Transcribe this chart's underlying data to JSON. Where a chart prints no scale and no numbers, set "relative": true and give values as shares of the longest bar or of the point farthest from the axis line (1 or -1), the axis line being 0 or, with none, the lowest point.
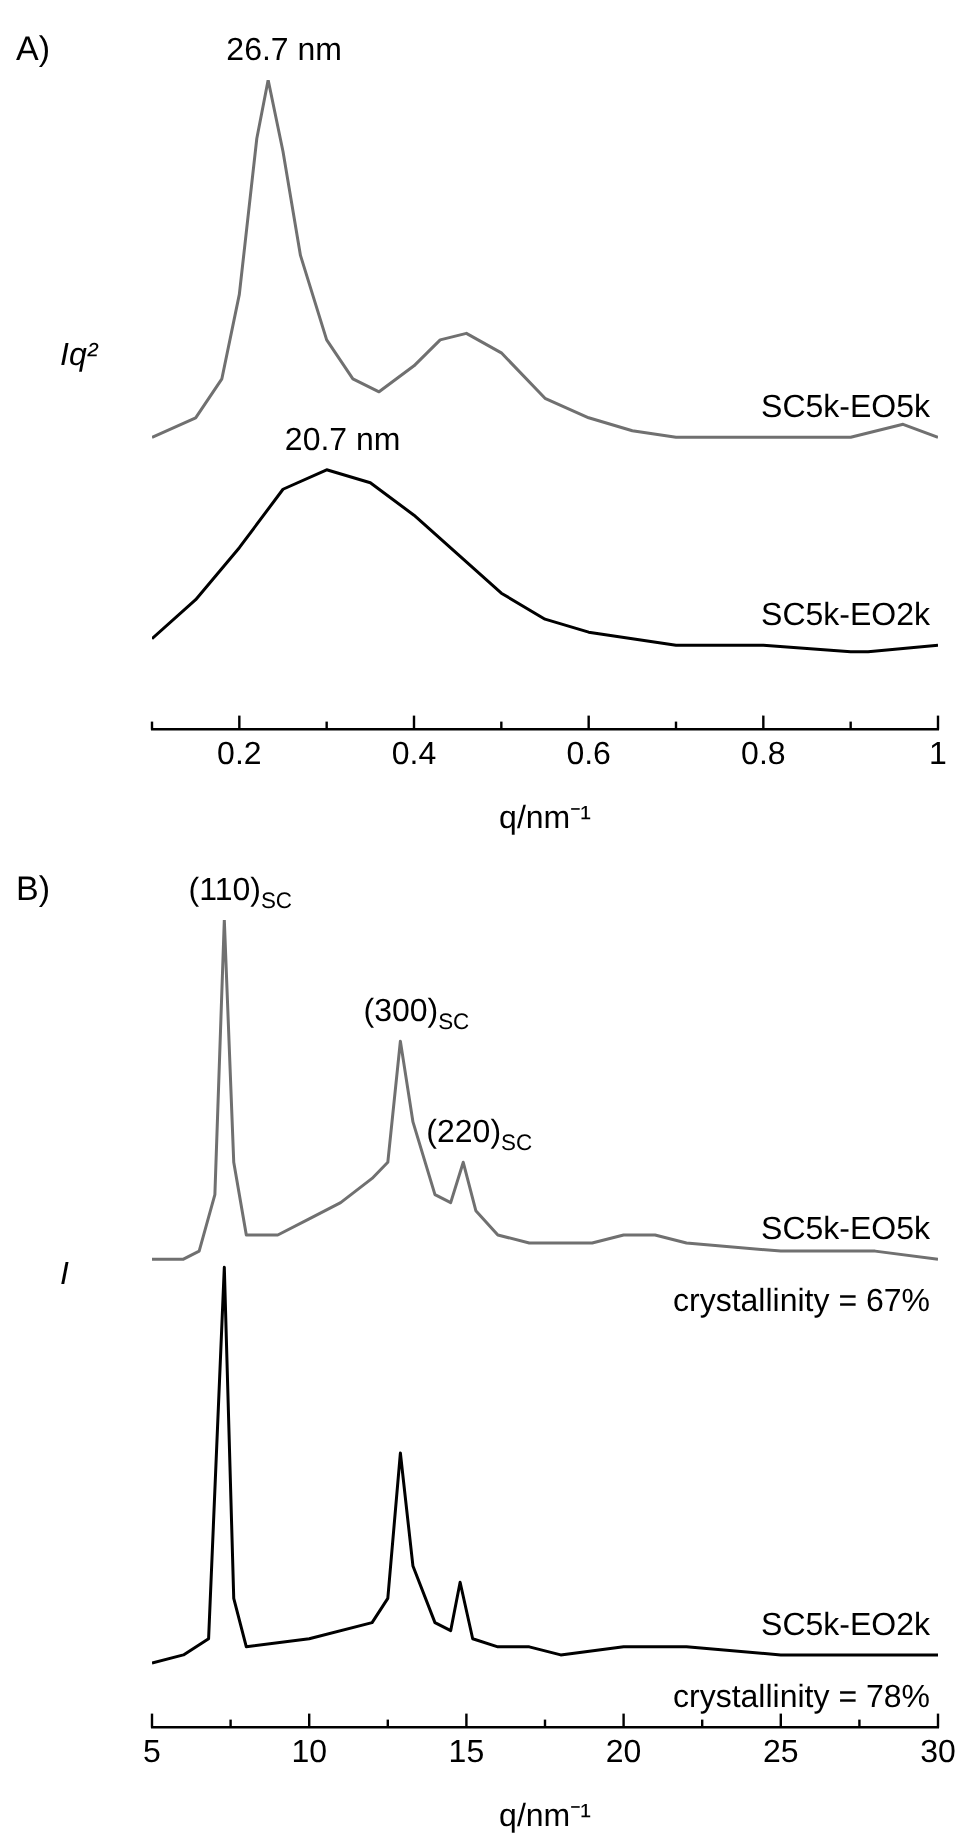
{
  "chart_data": [
    {
      "type": "line",
      "relative": true,
      "ylabel": "Iq²",
      "xlabel": "q/nm⁻¹",
      "xlim": [
        0.1,
        1.0
      ],
      "xticks": [
        {
          "value": 0.1,
          "label": null
        },
        0.2,
        {
          "value": 0.3,
          "label": null
        },
        0.4,
        {
          "value": 0.5,
          "label": null
        },
        0.6,
        {
          "value": 0.7,
          "label": null
        },
        0.8,
        {
          "value": 0.9,
          "label": null
        },
        1.0
      ],
      "annotations": [
        "A)",
        {
          "text": "26.7 nm",
          "x": 0.233,
          "y": 1.0
        },
        {
          "text": "20.7 nm",
          "x": 0.3,
          "y": 0.4
        }
      ],
      "series": [
        {
          "name": "SC5k-EO5k",
          "color": "#707070",
          "x": [
            0.1,
            0.15,
            0.18,
            0.2,
            0.22,
            0.233,
            0.25,
            0.27,
            0.3,
            0.33,
            0.36,
            0.4,
            0.43,
            0.46,
            0.5,
            0.55,
            0.6,
            0.65,
            0.7,
            0.8,
            0.9,
            0.96,
            1.0
          ],
          "values": [
            0.45,
            0.48,
            0.54,
            0.67,
            0.91,
            1.0,
            0.89,
            0.73,
            0.6,
            0.54,
            0.52,
            0.56,
            0.6,
            0.61,
            0.58,
            0.51,
            0.48,
            0.46,
            0.45,
            0.45,
            0.45,
            0.47,
            0.45
          ]
        },
        {
          "name": "SC5k-EO2k",
          "color": "#000000",
          "x": [
            0.1,
            0.15,
            0.2,
            0.25,
            0.3,
            0.35,
            0.4,
            0.45,
            0.5,
            0.55,
            0.6,
            0.7,
            0.8,
            0.9,
            0.92,
            1.0
          ],
          "values": [
            0.14,
            0.2,
            0.28,
            0.37,
            0.4,
            0.38,
            0.33,
            0.27,
            0.21,
            0.17,
            0.15,
            0.13,
            0.13,
            0.12,
            0.12,
            0.13
          ]
        }
      ]
    },
    {
      "type": "line",
      "relative": true,
      "ylabel": "I",
      "xlabel": "q/nm⁻¹",
      "xlim": [
        5,
        30
      ],
      "xticks": [
        5,
        {
          "value": 7.5,
          "label": null
        },
        10,
        {
          "value": 12.5,
          "label": null
        },
        15,
        {
          "value": 17.5,
          "label": null
        },
        20,
        {
          "value": 22.5,
          "label": null
        },
        25,
        {
          "value": 27.5,
          "label": null
        },
        30
      ],
      "annotations": [
        "B)",
        "crystallinity = 67%",
        "crystallinity = 78%",
        {
          "text": "(110)$_{SC}$",
          "x": 7.3,
          "y": 1.0
        },
        {
          "text": "(300)$_{SC}$",
          "x": 12.9,
          "y": 0.85
        },
        {
          "text": "(220)$_{SC}$",
          "x": 14.9,
          "y": 0.7
        }
      ],
      "series": [
        {
          "name": "SC5k-EO5k",
          "color": "#707070",
          "x": [
            5,
            6,
            6.5,
            7,
            7.3,
            7.6,
            8,
            9,
            10,
            11,
            12,
            12.5,
            12.9,
            13.3,
            14,
            14.5,
            14.9,
            15.3,
            16,
            17,
            18,
            19,
            20,
            21,
            22,
            25,
            28,
            30
          ],
          "values": [
            0.58,
            0.58,
            0.59,
            0.66,
            1.0,
            0.7,
            0.61,
            0.61,
            0.63,
            0.65,
            0.68,
            0.7,
            0.85,
            0.75,
            0.66,
            0.65,
            0.7,
            0.64,
            0.61,
            0.6,
            0.6,
            0.6,
            0.61,
            0.61,
            0.6,
            0.59,
            0.59,
            0.58
          ]
        },
        {
          "name": "SC5k-EO2k",
          "color": "#000000",
          "x": [
            5,
            6,
            6.8,
            7.3,
            7.6,
            8,
            10,
            12,
            12.5,
            12.9,
            13.3,
            14,
            14.5,
            14.8,
            15.2,
            16,
            17,
            18,
            20,
            21,
            22,
            25,
            30
          ],
          "values": [
            0.08,
            0.09,
            0.11,
            0.57,
            0.16,
            0.1,
            0.11,
            0.13,
            0.16,
            0.34,
            0.2,
            0.13,
            0.12,
            0.18,
            0.11,
            0.1,
            0.1,
            0.09,
            0.1,
            0.1,
            0.1,
            0.09,
            0.09
          ]
        }
      ]
    }
  ]
}
